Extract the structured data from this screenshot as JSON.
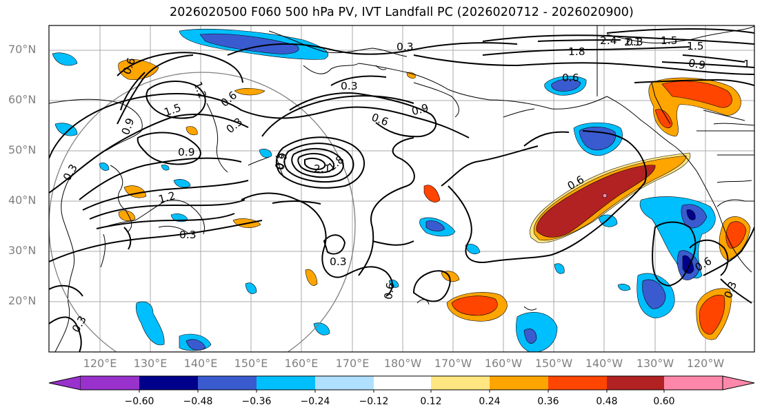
{
  "title": "2026020500 F060 500 hPa PV, IVT Landfall PC (2026020712 - 2026020900)",
  "lat_labels": [
    "70°N",
    "60°N",
    "50°N",
    "40°N",
    "30°N",
    "20°N"
  ],
  "lon_labels": [
    "120°E",
    "130°E",
    "140°E",
    "150°E",
    "160°E",
    "170°E",
    "180°W",
    "170°W",
    "160°W",
    "150°W",
    "140°W",
    "130°W",
    "120°W"
  ],
  "colorbar": {
    "ticks": [
      "−0.60",
      "−0.48",
      "−0.36",
      "−0.24",
      "−0.12",
      "0.12",
      "0.24",
      "0.36",
      "0.48",
      "0.60"
    ],
    "colors": [
      "#9932cc",
      "#00008b",
      "#3a5bcf",
      "#00bfff",
      "#b0e0ff",
      "#ffffff",
      "#ffe680",
      "#ffa500",
      "#ff4500",
      "#b22222",
      "#ff88aa"
    ]
  },
  "contour_labels": [
    "0.3",
    "1.5",
    "1.2",
    "0.9",
    "0.6",
    "0.3",
    "0.3",
    "0.6",
    "0.3",
    "0.9",
    "0.3",
    "1.5",
    "0.9",
    "0.6",
    "1.8",
    "2.4",
    "2.1",
    "1.5",
    "0.9",
    "1",
    "0.6",
    "1.2",
    "2.1",
    "1.8",
    "0.9",
    "0.6",
    "0.3",
    "0.6",
    "0.3",
    "0.3",
    "0.3",
    "0.6",
    "0.3"
  ]
}
